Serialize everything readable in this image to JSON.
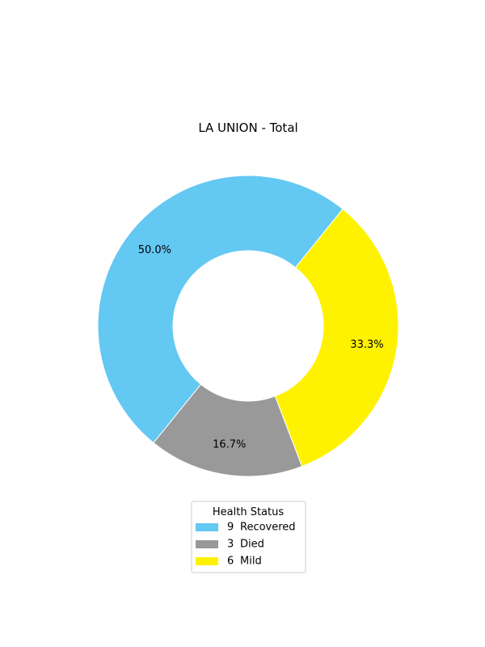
{
  "chart_data": {
    "type": "pie",
    "style": "donut",
    "title": "LA UNION - Total",
    "legend_title": "Health Status",
    "legend_placement": "bottom-center",
    "slices": [
      {
        "label": "Recovered",
        "count": "9",
        "value": 9,
        "percent_label": "50.0%",
        "color": "#63c8f2"
      },
      {
        "label": "Died",
        "count": "3",
        "value": 3,
        "percent_label": "16.7%",
        "color": "#999999"
      },
      {
        "label": "Mild",
        "count": "6",
        "value": 6,
        "percent_label": "33.3%",
        "color": "#fff200"
      }
    ]
  }
}
